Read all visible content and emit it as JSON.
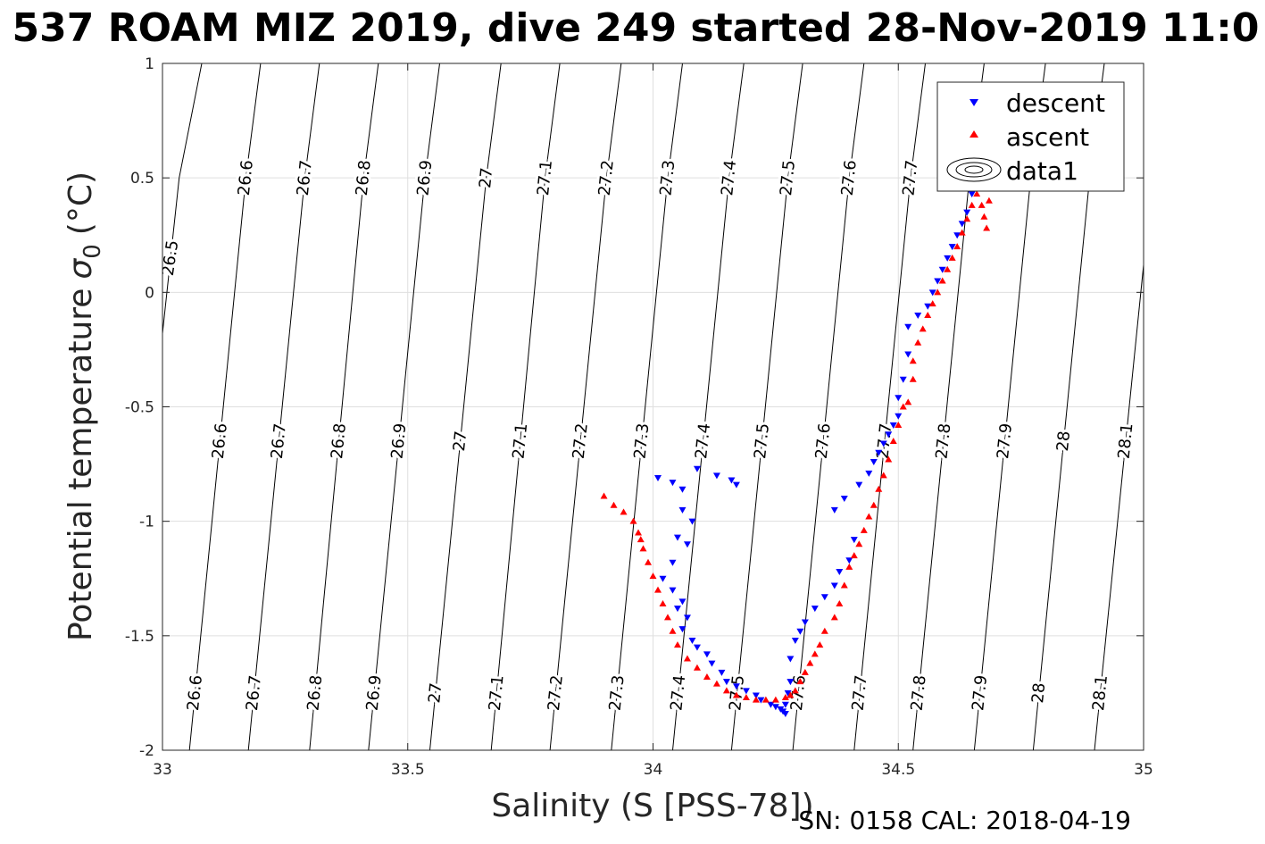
{
  "chart_data": {
    "type": "scatter",
    "title": "537 ROAM MIZ 2019, dive 249 started 28-Nov-2019 11:0",
    "xlabel": "Salinity (S [PSS-78])",
    "ylabel": "Potential temperature",
    "ylabel_sym": "σ",
    "ylabel_sub": "0",
    "ylabel_unit": "(°C)",
    "xlim": [
      33,
      35
    ],
    "ylim": [
      -2,
      1
    ],
    "xticks": [
      "33",
      "33.5",
      "34",
      "34.5",
      "35"
    ],
    "yticks": [
      "1",
      "0.5",
      "0",
      "-0.5",
      "-1",
      "-1.5",
      "-2"
    ],
    "grid": true,
    "legend_position": "top-right",
    "footer": "SN: 0158  CAL: 2018-04-19",
    "colors": {
      "descent": "#0000ff",
      "ascent": "#ff0000",
      "contour": "#000000",
      "grid": "#dfdfdf"
    },
    "legend": [
      "descent",
      "ascent",
      "data1"
    ],
    "contour_labels": {
      "top": [
        "26.5",
        "26.6",
        "26.7",
        "26.8",
        "26.9",
        "27",
        "27.1",
        "27.2",
        "27.3",
        "27.4",
        "27.5",
        "27.6",
        "27.7"
      ],
      "middle": [
        "26.6",
        "26.7",
        "26.8",
        "26.9",
        "27",
        "27.1",
        "27.2",
        "27.3",
        "27.4",
        "27.5",
        "27.6",
        "27.7",
        "27.8",
        "27.9",
        "28",
        "28.1"
      ],
      "bottom": [
        "26.6",
        "26.7",
        "26.8",
        "26.9",
        "27",
        "27.1",
        "27.2",
        "27.3",
        "27.4",
        "27.5",
        "27.6",
        "27.7",
        "27.8",
        "27.9",
        "28",
        "28.1"
      ]
    },
    "contours": [
      {
        "label": "26.5",
        "points": [
          [
            33.0,
            -0.18
          ],
          [
            33.034,
            0.5
          ],
          [
            33.08,
            1.0
          ]
        ]
      },
      {
        "label": "26.6",
        "points": [
          [
            33.055,
            -2.0
          ],
          [
            33.17,
            0.5
          ],
          [
            33.2,
            1.0
          ]
        ]
      },
      {
        "label": "26.7",
        "points": [
          [
            33.175,
            -2.0
          ],
          [
            33.29,
            0.5
          ],
          [
            33.32,
            1.0
          ]
        ]
      },
      {
        "label": "26.8",
        "points": [
          [
            33.3,
            -2.0
          ],
          [
            33.41,
            0.5
          ],
          [
            33.44,
            1.0
          ]
        ]
      },
      {
        "label": "26.9",
        "points": [
          [
            33.42,
            -2.0
          ],
          [
            33.535,
            0.5
          ],
          [
            33.565,
            1.0
          ]
        ]
      },
      {
        "label": "27",
        "points": [
          [
            33.545,
            -2.0
          ],
          [
            33.66,
            0.5
          ],
          [
            33.69,
            1.0
          ]
        ]
      },
      {
        "label": "27.1",
        "points": [
          [
            33.67,
            -2.0
          ],
          [
            33.78,
            0.5
          ],
          [
            33.81,
            1.0
          ]
        ]
      },
      {
        "label": "27.2",
        "points": [
          [
            33.79,
            -2.0
          ],
          [
            33.905,
            0.5
          ],
          [
            33.935,
            1.0
          ]
        ]
      },
      {
        "label": "27.3",
        "points": [
          [
            33.915,
            -2.0
          ],
          [
            34.03,
            0.5
          ],
          [
            34.06,
            1.0
          ]
        ]
      },
      {
        "label": "27.4",
        "points": [
          [
            34.04,
            -2.0
          ],
          [
            34.155,
            0.5
          ],
          [
            34.185,
            1.0
          ]
        ]
      },
      {
        "label": "27.5",
        "points": [
          [
            34.16,
            -2.0
          ],
          [
            34.275,
            0.5
          ],
          [
            34.305,
            1.0
          ]
        ]
      },
      {
        "label": "27.6",
        "points": [
          [
            34.285,
            -2.0
          ],
          [
            34.4,
            0.5
          ],
          [
            34.43,
            1.0
          ]
        ]
      },
      {
        "label": "27.7",
        "points": [
          [
            34.41,
            -2.0
          ],
          [
            34.525,
            0.5
          ],
          [
            34.555,
            1.0
          ]
        ]
      },
      {
        "label": "27.8",
        "points": [
          [
            34.53,
            -2.0
          ],
          [
            34.645,
            0.5
          ],
          [
            34.675,
            1.0
          ]
        ]
      },
      {
        "label": "27.9",
        "points": [
          [
            34.655,
            -2.0
          ],
          [
            34.77,
            0.5
          ],
          [
            34.8,
            1.0
          ]
        ]
      },
      {
        "label": "28",
        "points": [
          [
            34.775,
            -2.0
          ],
          [
            34.89,
            0.5
          ],
          [
            34.92,
            1.0
          ]
        ]
      },
      {
        "label": "28.1",
        "points": [
          [
            34.9,
            -2.0
          ],
          [
            35.0,
            0.12
          ]
        ]
      }
    ],
    "series": [
      {
        "name": "descent",
        "marker": "triangle-down",
        "x": [
          34.01,
          34.04,
          34.06,
          34.09,
          34.13,
          34.16,
          34.17,
          34.06,
          34.08,
          34.05,
          34.07,
          34.04,
          34.02,
          34.04,
          34.06,
          34.05,
          34.07,
          34.06,
          34.08,
          34.09,
          34.11,
          34.12,
          34.14,
          34.15,
          34.17,
          34.19,
          34.21,
          34.22,
          34.24,
          34.25,
          34.26,
          34.265,
          34.27,
          34.27,
          34.275,
          34.28,
          34.28,
          34.29,
          34.3,
          34.31,
          34.33,
          34.35,
          34.37,
          34.38,
          34.4,
          34.41,
          34.37,
          34.39,
          34.42,
          34.44,
          34.45,
          34.46,
          34.47,
          34.48,
          34.49,
          34.5,
          34.5,
          34.51,
          34.52,
          34.52,
          34.54,
          34.56,
          34.57,
          34.58,
          34.59,
          34.6,
          34.61,
          34.62,
          34.63,
          34.64,
          34.65
        ],
        "y": [
          -0.81,
          -0.83,
          -0.86,
          -0.77,
          -0.8,
          -0.82,
          -0.84,
          -0.95,
          -1.0,
          -1.07,
          -1.1,
          -1.18,
          -1.25,
          -1.3,
          -1.35,
          -1.38,
          -1.42,
          -1.47,
          -1.52,
          -1.55,
          -1.58,
          -1.62,
          -1.66,
          -1.7,
          -1.72,
          -1.74,
          -1.76,
          -1.78,
          -1.8,
          -1.81,
          -1.82,
          -1.83,
          -1.84,
          -1.8,
          -1.75,
          -1.7,
          -1.6,
          -1.52,
          -1.48,
          -1.44,
          -1.38,
          -1.33,
          -1.28,
          -1.22,
          -1.17,
          -1.08,
          -0.95,
          -0.9,
          -0.84,
          -0.79,
          -0.74,
          -0.7,
          -0.66,
          -0.62,
          -0.58,
          -0.54,
          -0.46,
          -0.38,
          -0.27,
          -0.15,
          -0.1,
          -0.06,
          0.0,
          0.05,
          0.1,
          0.15,
          0.2,
          0.25,
          0.3,
          0.35,
          0.43
        ]
      },
      {
        "name": "ascent",
        "marker": "triangle-up",
        "x": [
          33.9,
          33.92,
          33.94,
          33.96,
          33.97,
          33.975,
          33.98,
          33.99,
          34.0,
          34.01,
          34.02,
          34.03,
          34.04,
          34.05,
          34.07,
          34.09,
          34.11,
          34.13,
          34.15,
          34.17,
          34.19,
          34.21,
          34.23,
          34.25,
          34.27,
          34.28,
          34.29,
          34.3,
          34.31,
          34.32,
          34.33,
          34.34,
          34.35,
          34.37,
          34.38,
          34.39,
          34.4,
          34.41,
          34.42,
          34.43,
          34.44,
          34.45,
          34.46,
          34.47,
          34.48,
          34.49,
          34.5,
          34.51,
          34.52,
          34.53,
          34.53,
          34.54,
          34.55,
          34.56,
          34.57,
          34.58,
          34.59,
          34.6,
          34.61,
          34.62,
          34.63,
          34.64,
          34.65,
          34.66,
          34.67,
          34.675,
          34.68,
          34.685
        ],
        "y": [
          -0.89,
          -0.93,
          -0.96,
          -1.0,
          -1.05,
          -1.08,
          -1.12,
          -1.18,
          -1.24,
          -1.3,
          -1.36,
          -1.42,
          -1.48,
          -1.54,
          -1.6,
          -1.64,
          -1.68,
          -1.71,
          -1.74,
          -1.76,
          -1.77,
          -1.78,
          -1.78,
          -1.78,
          -1.77,
          -1.76,
          -1.74,
          -1.7,
          -1.66,
          -1.62,
          -1.58,
          -1.54,
          -1.48,
          -1.42,
          -1.36,
          -1.28,
          -1.2,
          -1.15,
          -1.1,
          -1.04,
          -0.98,
          -0.93,
          -0.86,
          -0.8,
          -0.73,
          -0.65,
          -0.58,
          -0.5,
          -0.48,
          -0.38,
          -0.3,
          -0.22,
          -0.16,
          -0.1,
          -0.05,
          0.0,
          0.05,
          0.1,
          0.15,
          0.2,
          0.26,
          0.32,
          0.38,
          0.43,
          0.38,
          0.33,
          0.28,
          0.4
        ]
      }
    ]
  }
}
